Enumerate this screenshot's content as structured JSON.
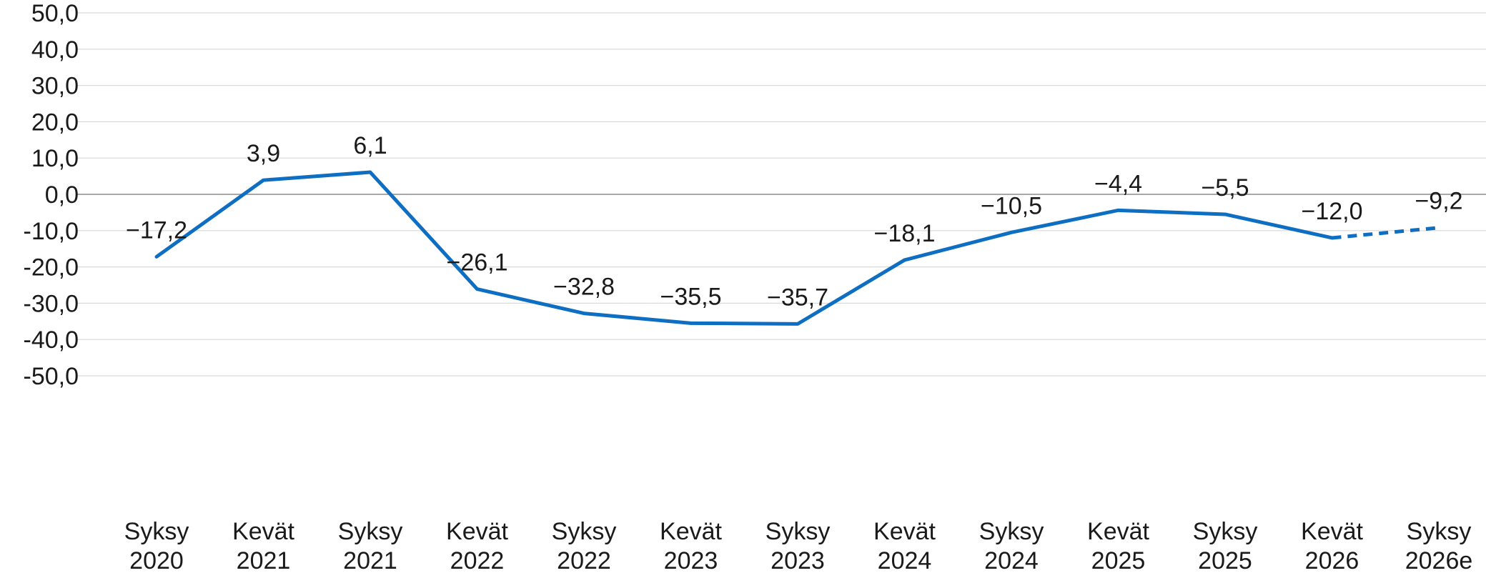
{
  "chart_data": {
    "type": "line",
    "title": "",
    "xlabel": "",
    "ylabel": "",
    "ylim": [
      -50,
      50
    ],
    "y_ticks": [
      "50,0",
      "40,0",
      "30,0",
      "20,0",
      "10,0",
      "0,0",
      "-10,0",
      "-20,0",
      "-30,0",
      "-40,0",
      "-50,0"
    ],
    "y_tick_values": [
      50,
      40,
      30,
      20,
      10,
      0,
      -10,
      -20,
      -30,
      -40,
      -50
    ],
    "grid": true,
    "categories": [
      [
        "Syksy",
        "2020"
      ],
      [
        "Kevät",
        "2021"
      ],
      [
        "Syksy",
        "2021"
      ],
      [
        "Kevät",
        "2022"
      ],
      [
        "Syksy",
        "2022"
      ],
      [
        "Kevät",
        "2023"
      ],
      [
        "Syksy",
        "2023"
      ],
      [
        "Kevät",
        "2024"
      ],
      [
        "Syksy",
        "2024"
      ],
      [
        "Kevät",
        "2025"
      ],
      [
        "Syksy",
        "2025"
      ],
      [
        "Kevät",
        "2026"
      ],
      [
        "Syksy",
        "2026e"
      ]
    ],
    "series": [
      {
        "values": [
          -17.2,
          3.9,
          6.1,
          -26.1,
          -32.8,
          -35.5,
          -35.7,
          -18.1,
          -10.5,
          -4.4,
          -5.5,
          -12.0,
          -9.2
        ],
        "labels": [
          "−17,2",
          "3,9",
          "6,1",
          "−26,1",
          "−32,8",
          "−35,5",
          "−35,7",
          "−18,1",
          "−10,5",
          "−4,4",
          "−5,5",
          "−12,0",
          "−9,2"
        ],
        "estimate_from_index": 11,
        "color": "#0e6fc2"
      }
    ],
    "colors": {
      "line": "#0e6fc2",
      "grid": "#d9d9d9",
      "zero_line": "#8c8c8c",
      "text": "#1a1a1a"
    }
  }
}
